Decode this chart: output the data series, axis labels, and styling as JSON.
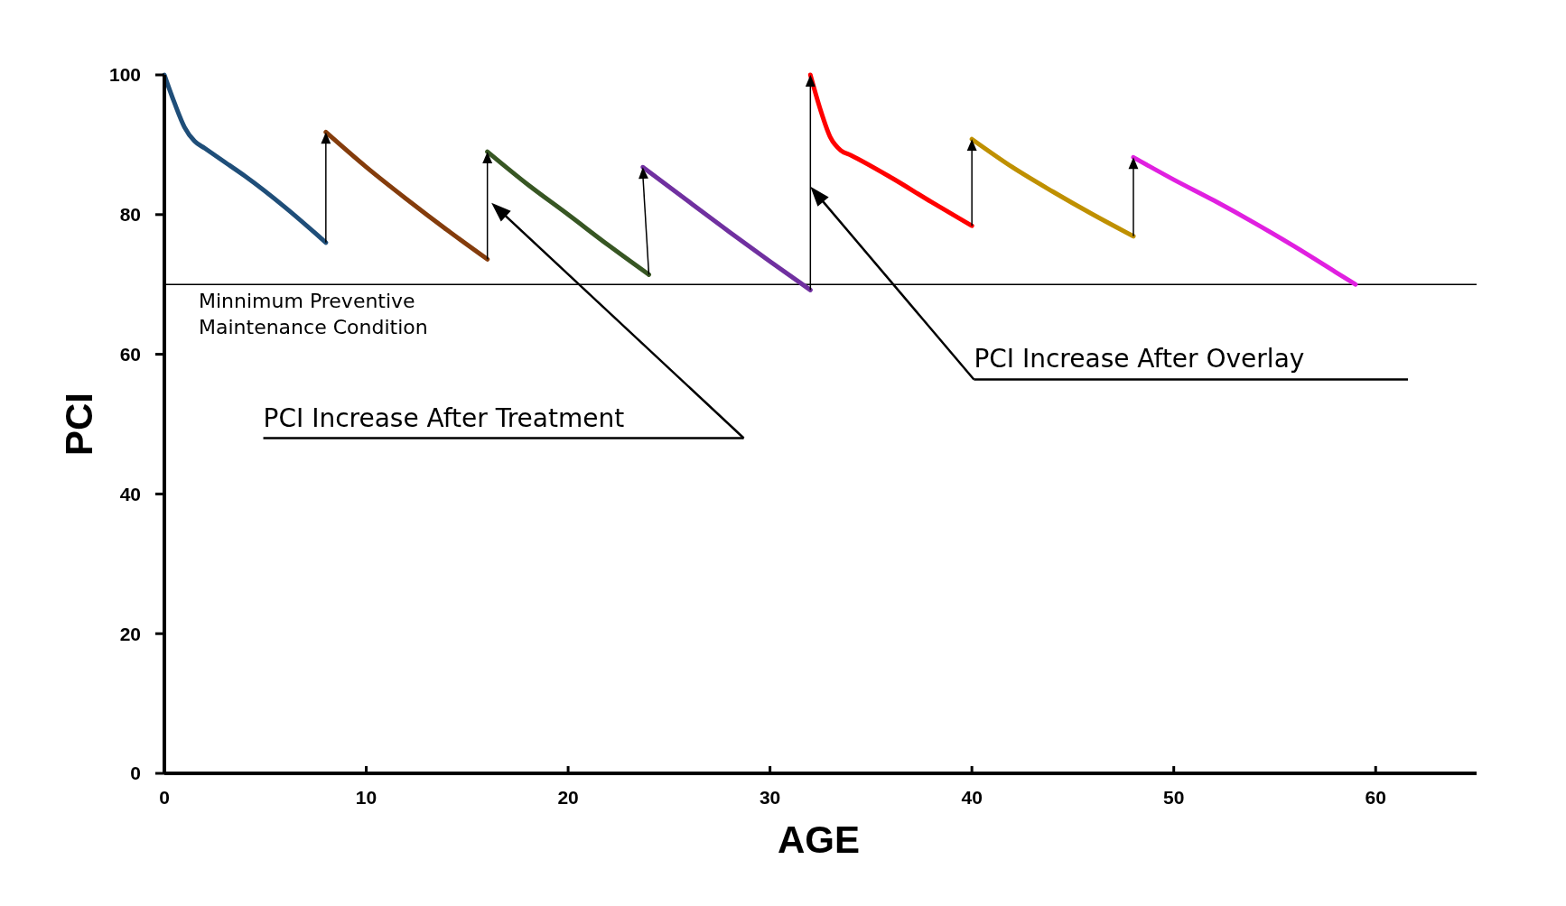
{
  "chart_data": {
    "type": "line",
    "xlabel": "AGE",
    "ylabel": "PCI",
    "xlim": [
      0,
      65
    ],
    "ylim": [
      0,
      100
    ],
    "xticks": [
      0,
      10,
      20,
      30,
      40,
      50,
      60
    ],
    "yticks": [
      0,
      20,
      40,
      60,
      80,
      100
    ],
    "grid": false,
    "marker": "none",
    "line_style": "solid",
    "series": [
      {
        "color": "#1f4e79",
        "x": [
          0,
          0.5,
          1,
          1.5,
          2,
          3,
          4,
          6,
          8
        ],
        "values": [
          100,
          96,
          92.5,
          90.5,
          89.5,
          87.5,
          85.5,
          81,
          76
        ]
      },
      {
        "color": "#843c0c",
        "x": [
          8,
          10,
          12,
          14,
          16
        ],
        "values": [
          91.8,
          86.8,
          82.2,
          77.8,
          73.6
        ]
      },
      {
        "color": "#375623",
        "x": [
          16,
          18,
          20,
          22,
          24
        ],
        "values": [
          89,
          84.3,
          80,
          75.6,
          71.4
        ]
      },
      {
        "color": "#7030a0",
        "x": [
          23.7,
          26,
          28,
          30,
          32
        ],
        "values": [
          86.8,
          81.8,
          77.5,
          73.3,
          69.2
        ]
      },
      {
        "color": "#ff0000",
        "x": [
          32,
          32.5,
          33,
          33.5,
          34,
          36,
          38,
          40
        ],
        "values": [
          100,
          95,
          91,
          89.2,
          88.5,
          85.3,
          81.8,
          78.4
        ]
      },
      {
        "color": "#bf9000",
        "x": [
          40,
          42,
          44,
          46,
          48
        ],
        "values": [
          90.8,
          86.8,
          83.3,
          80,
          76.9
        ]
      },
      {
        "color": "#e020e0",
        "x": [
          48,
          50,
          52,
          54,
          56,
          58,
          59
        ],
        "values": [
          88.2,
          85,
          82,
          78.8,
          75.4,
          71.8,
          70
        ]
      }
    ],
    "ref_lines": [
      {
        "axis": "y",
        "value": 70,
        "label": "Minnimum Preventive Maintenance Condition",
        "color": "#000000"
      }
    ],
    "annotations": [
      "PCI Increase After Treatment",
      "PCI Increase After Overlay"
    ]
  }
}
